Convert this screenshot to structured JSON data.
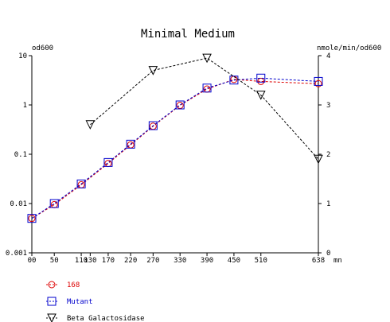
{
  "chart_data": {
    "type": "line",
    "title": "Minimal Medium",
    "y_left_label": "od600",
    "y_right_label": "nmole/min/od600",
    "x_unit": "mn",
    "x_tick_labels": [
      "00",
      "50",
      "110",
      "130",
      "170",
      "220",
      "270",
      "330",
      "390",
      "450",
      "510",
      "638"
    ],
    "x_range": [
      0,
      638
    ],
    "y_left_scale": "log",
    "y_left_range": [
      0.001,
      10
    ],
    "y_left_tick_labels": [
      "10",
      "1",
      "0.1",
      "0.01",
      "0.001"
    ],
    "y_right_range": [
      0,
      4
    ],
    "y_right_tick_labels": [
      "4",
      "3",
      "2",
      "1",
      "0"
    ],
    "grid": false,
    "legend_position": "bottom-left",
    "series": [
      {
        "name": "168",
        "axis": "left",
        "color": "#dd0000",
        "marker": "circle",
        "x": [
          0,
          50,
          110,
          170,
          220,
          270,
          330,
          390,
          450,
          510,
          638
        ],
        "y": [
          0.005,
          0.0095,
          0.024,
          0.065,
          0.155,
          0.37,
          0.98,
          2.1,
          3.3,
          3.0,
          2.7
        ]
      },
      {
        "name": "Mutant",
        "axis": "left",
        "color": "#0000cc",
        "marker": "square",
        "x": [
          0,
          50,
          110,
          170,
          220,
          270,
          330,
          390,
          450,
          510,
          638
        ],
        "y": [
          0.005,
          0.01,
          0.025,
          0.068,
          0.16,
          0.38,
          1.0,
          2.2,
          3.2,
          3.5,
          3.0
        ]
      },
      {
        "name": "Beta Galactosidase",
        "axis": "right",
        "color": "#000000",
        "marker": "triangle-down",
        "x": [
          130,
          270,
          390,
          510,
          638
        ],
        "y": [
          2.6,
          3.7,
          3.95,
          3.2,
          1.9
        ]
      }
    ]
  }
}
